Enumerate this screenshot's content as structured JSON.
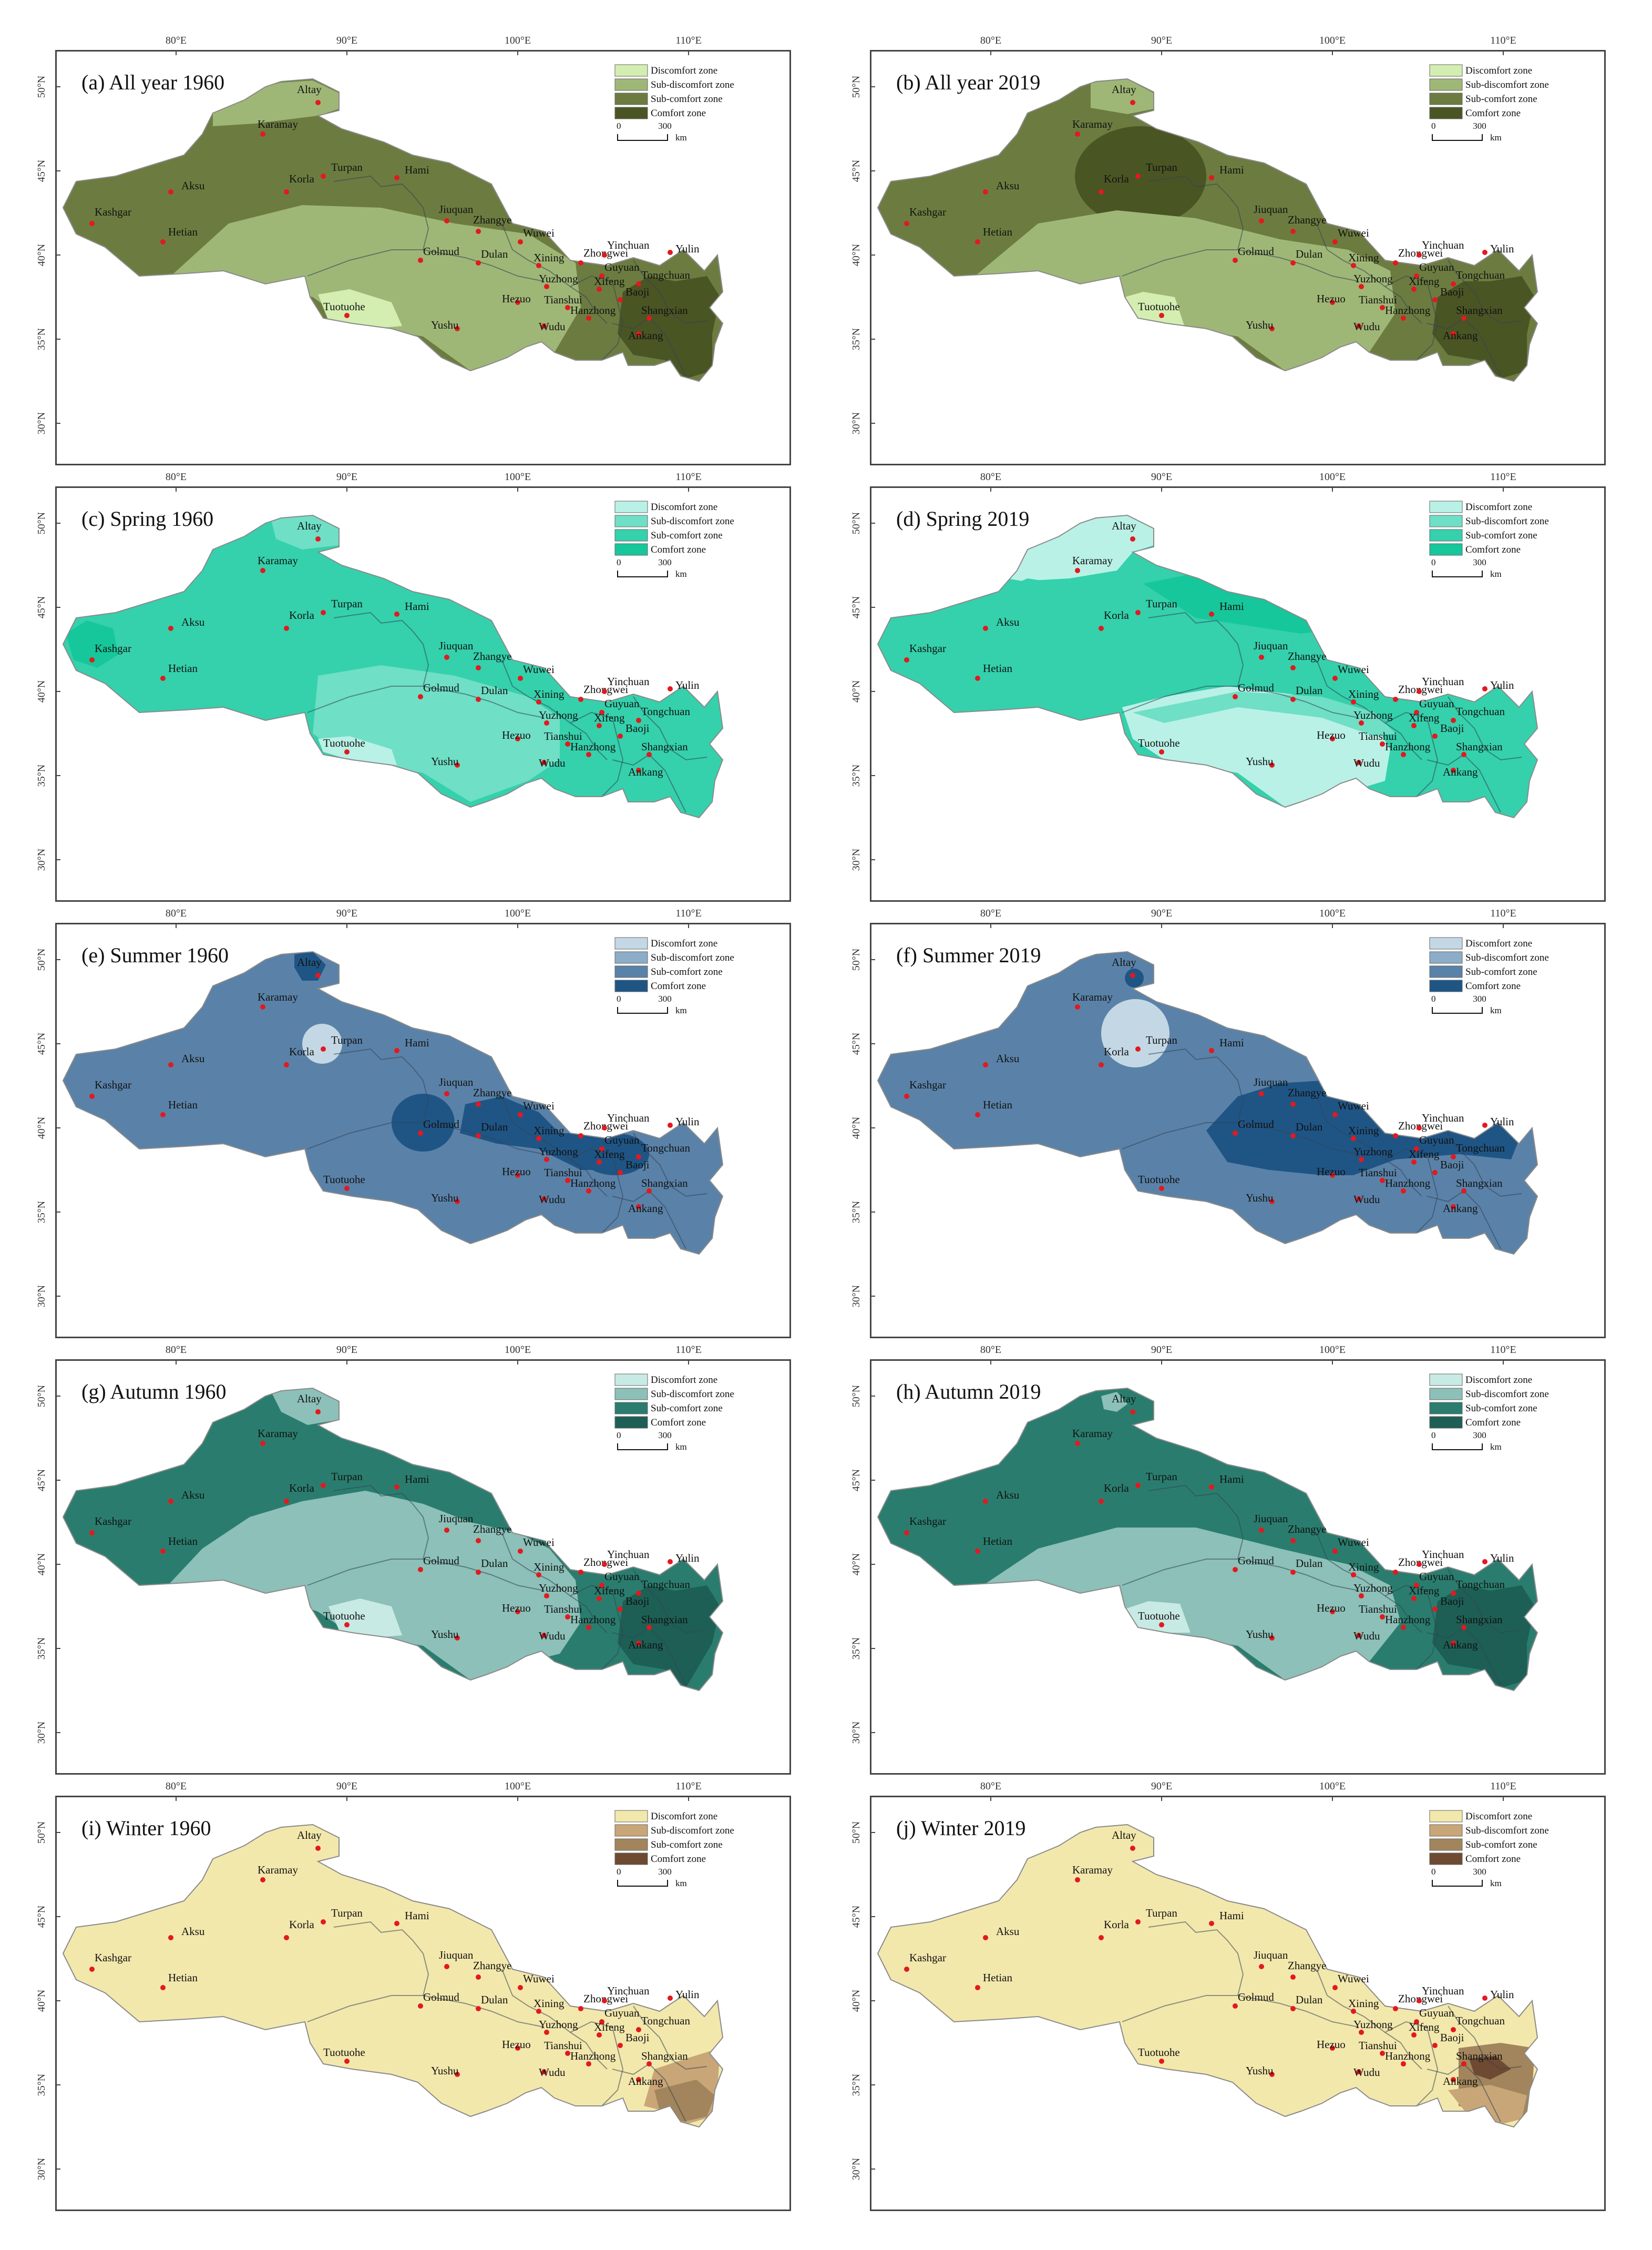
{
  "legend_labels": [
    "Discomfort zone",
    "Sub-discomfort zone",
    "Sub-comfort zone",
    "Comfort zone"
  ],
  "scale_bar": {
    "zero": "0",
    "value": "300",
    "unit": "km"
  },
  "lon_ticks": [
    "80°E",
    "90°E",
    "100°E",
    "110°E"
  ],
  "lat_ticks": [
    "50°N",
    "45°N",
    "40°N",
    "35°N",
    "30°N"
  ],
  "cities": [
    "Altay",
    "Karamay",
    "Turpan",
    "Hami",
    "Aksu",
    "Korla",
    "Kashgar",
    "Hetian",
    "Jiuquan",
    "Zhangye",
    "Wuwei",
    "Golmud",
    "Dulan",
    "Xining",
    "Zhongwei",
    "Yinchuan",
    "Yulin",
    "Guyuan",
    "Tongchuan",
    "Yuzhong",
    "Xifeng",
    "Baoji",
    "Hezuo",
    "Tianshui",
    "Hanzhong",
    "Shangxian",
    "Wudu",
    "Ankang",
    "Tuotuohe",
    "Yushu"
  ],
  "panels": [
    {
      "title": "(a) All year 1960",
      "palette": [
        "#d4eeb2",
        "#9fb776",
        "#6c7c40",
        "#4a5524"
      ],
      "background_zone": 2
    },
    {
      "title": "(b) All year 2019",
      "palette": [
        "#d4eeb2",
        "#9fb776",
        "#6c7c40",
        "#4a5524"
      ],
      "background_zone": 2
    },
    {
      "title": "(c) Spring 1960",
      "palette": [
        "#b9f1e6",
        "#6fdfc6",
        "#34d1ac",
        "#16c79b"
      ],
      "background_zone": 2
    },
    {
      "title": "(d) Spring 2019",
      "palette": [
        "#b9f1e6",
        "#6fdfc6",
        "#34d1ac",
        "#16c79b"
      ],
      "background_zone": 2
    },
    {
      "title": "(e) Summer 1960",
      "palette": [
        "#c3d8e4",
        "#8cadc8",
        "#5a82a8",
        "#1f5585"
      ],
      "background_zone": 2
    },
    {
      "title": "(f) Summer 2019",
      "palette": [
        "#c3d8e4",
        "#8cadc8",
        "#5a82a8",
        "#1f5585"
      ],
      "background_zone": 2
    },
    {
      "title": "(g) Autumn 1960",
      "palette": [
        "#c8eae4",
        "#8cc0b8",
        "#2a7d6e",
        "#1d5f55"
      ],
      "background_zone": 2
    },
    {
      "title": "(h) Autumn 2019",
      "palette": [
        "#c8eae4",
        "#8cc0b8",
        "#2a7d6e",
        "#1d5f55"
      ],
      "background_zone": 2
    },
    {
      "title": "(i) Winter 1960",
      "palette": [
        "#f3e8ac",
        "#c9a677",
        "#a2855c",
        "#6e4a32"
      ],
      "background_zone": 0
    },
    {
      "title": "(j) Winter 2019",
      "palette": [
        "#f3e8ac",
        "#c9a677",
        "#a2855c",
        "#6e4a32"
      ],
      "background_zone": 0
    }
  ]
}
